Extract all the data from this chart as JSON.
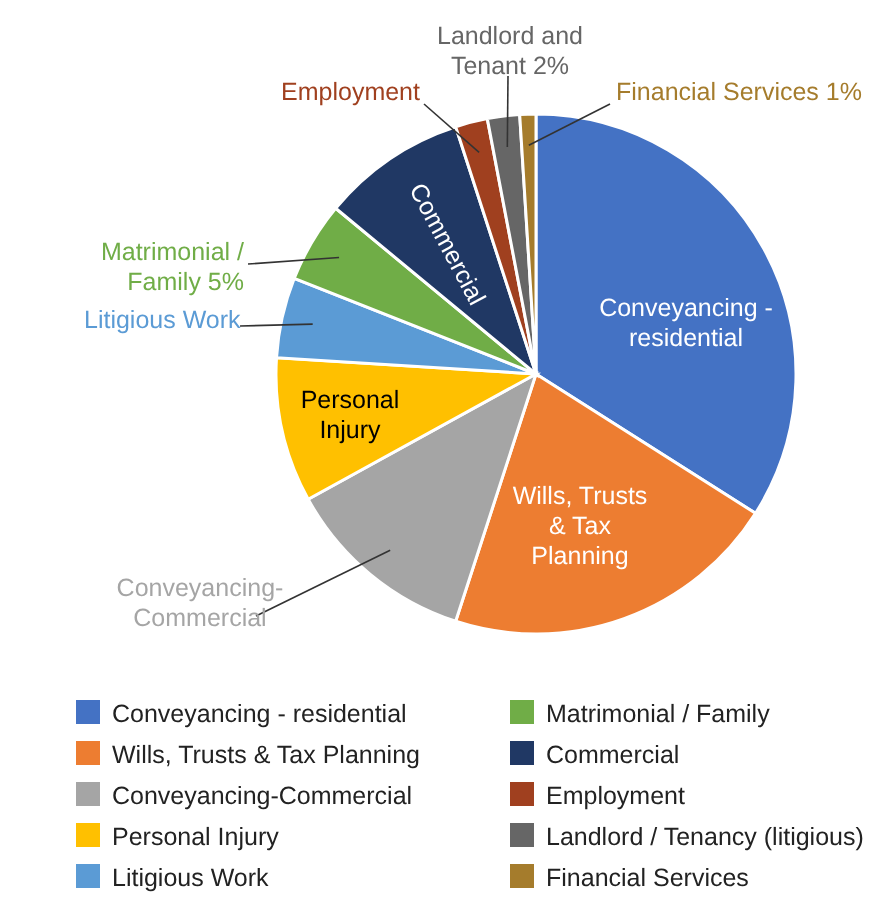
{
  "chart_data": {
    "type": "pie",
    "legend": "bottom",
    "categories": [
      "Conveyancing - residential",
      "Wills, Trusts & Tax Planning",
      "Conveyancing-Commercial",
      "Personal Injury",
      "Litigious Work",
      "Matrimonial / Family",
      "Commercial",
      "Employment",
      "Landlord / Tenancy (litigious)",
      "Financial Services"
    ],
    "values": [
      34,
      21,
      12,
      9,
      5,
      5,
      9,
      2,
      2,
      1
    ],
    "colors": [
      "#4472c4",
      "#ed7d31",
      "#a5a5a5",
      "#ffc000",
      "#5b9bd5",
      "#70ad47",
      "#203864",
      "#a0401f",
      "#666666",
      "#a57c2c"
    ],
    "value_labels": [
      "Conveyancing - residential",
      "Wills, Trusts & Tax Planning",
      "Conveyancing-Commercial",
      "Personal Injury",
      "Litigious Work",
      "Matrimonial / Family 5%",
      "Commercial",
      "Employment",
      "Landlord and Tenant 2%",
      "Financial Services 1%"
    ]
  }
}
